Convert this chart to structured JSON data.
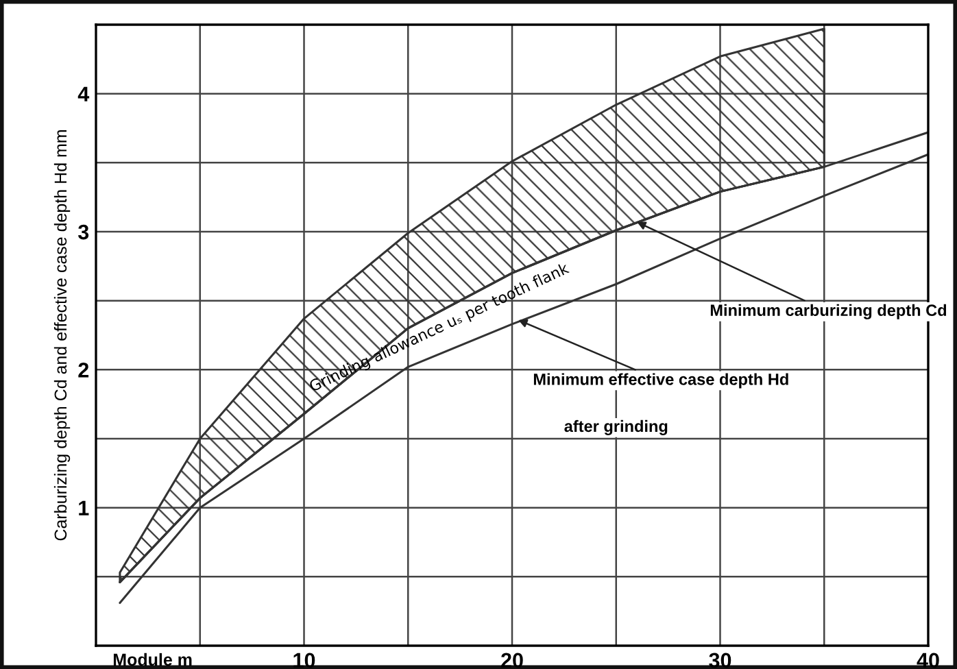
{
  "chart_data": {
    "type": "line",
    "xlabel": "Module m",
    "ylabel": "Carburizing depth Cd and effective case depth Hd mm",
    "xlim": [
      0,
      40
    ],
    "ylim": [
      0,
      4.5
    ],
    "xticks": [
      {
        "value": 5,
        "label": null
      },
      10,
      {
        "value": 15,
        "label": null
      },
      20,
      {
        "value": 25,
        "label": null
      },
      30,
      {
        "value": 35,
        "label": null
      },
      40
    ],
    "yticks": [
      {
        "value": 0.5,
        "label": null
      },
      1,
      {
        "value": 1.5,
        "label": null
      },
      2,
      {
        "value": 2.5,
        "label": null
      },
      3,
      {
        "value": 3.5,
        "label": null
      },
      4
    ],
    "grid": true,
    "series": [
      {
        "color": "#333333",
        "x": [
          1.15,
          5,
          10,
          15,
          20,
          25,
          30,
          35
        ],
        "values": [
          0.46,
          1.07,
          1.68,
          2.3,
          2.7,
          3.01,
          3.29,
          3.47
        ],
        "lower": [
          0.46,
          1.07,
          1.68,
          2.3,
          2.7,
          3.01,
          3.29,
          3.47
        ],
        "upper": [
          0.53,
          1.5,
          2.37,
          2.99,
          3.51,
          3.92,
          4.27,
          4.47
        ]
      },
      {
        "color": "#333333",
        "x": [
          1.15,
          5,
          10,
          15,
          20,
          25,
          30,
          35,
          40
        ],
        "values": [
          0.46,
          1.07,
          1.68,
          2.3,
          2.7,
          3.01,
          3.29,
          3.47,
          3.72
        ]
      },
      {
        "color": "#333333",
        "x": [
          1.15,
          5,
          10,
          15,
          20,
          25,
          30,
          35,
          40
        ],
        "values": [
          0.31,
          1.0,
          1.5,
          2.02,
          2.33,
          2.62,
          2.95,
          3.26,
          3.56
        ]
      }
    ],
    "annotations": [
      "Grinding allowance uₛ per tooth flank",
      {
        "text": "Minimum carburizing depth Cd",
        "x": 26,
        "y": 3.07
      },
      {
        "text": "Minimum effective case depth Hd",
        "x": 20.3,
        "y": 2.36
      },
      "after grinding"
    ]
  }
}
